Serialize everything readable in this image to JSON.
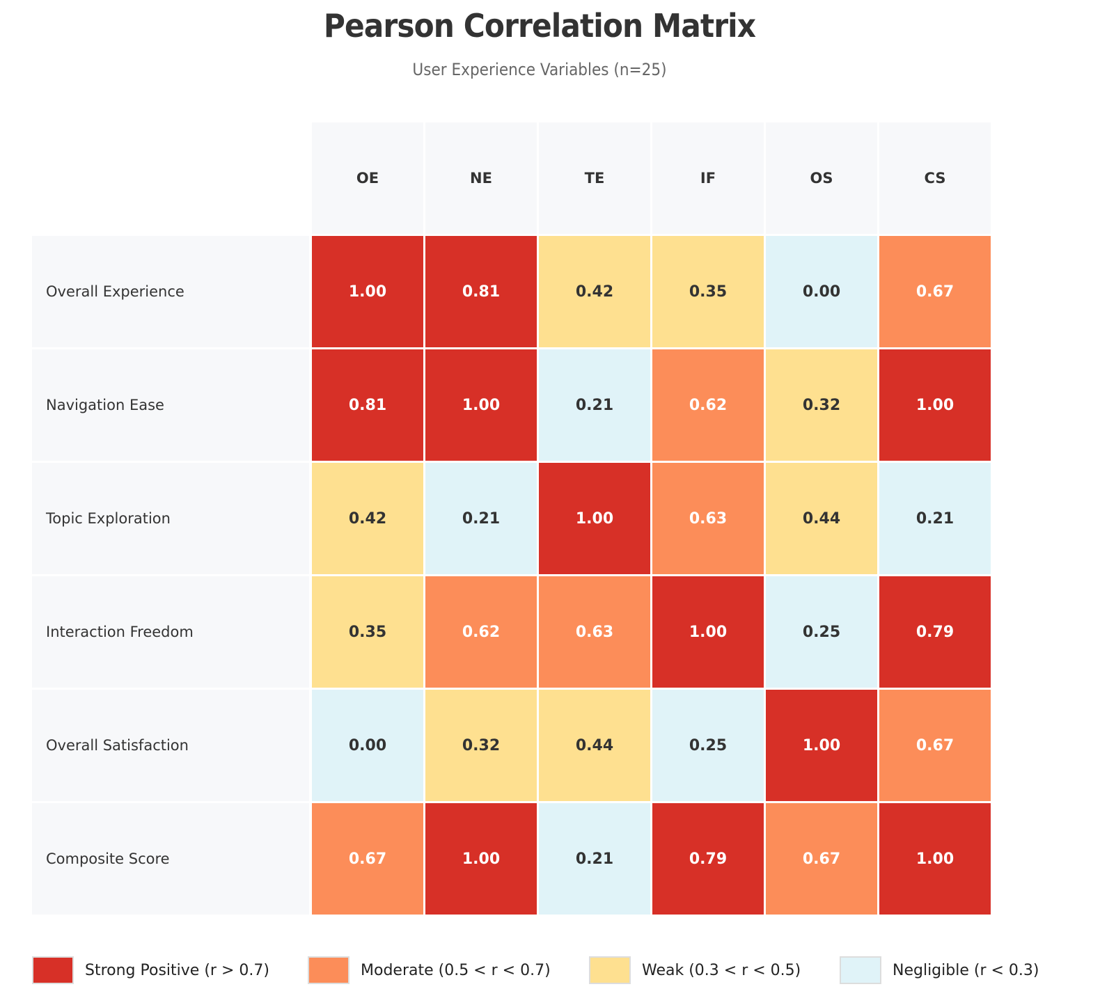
{
  "chart_data": {
    "type": "heatmap",
    "title": "Pearson Correlation Matrix",
    "subtitle": "User Experience Variables (n=25)",
    "col_labels": [
      "OE",
      "NE",
      "TE",
      "IF",
      "OS",
      "CS"
    ],
    "row_labels": [
      "Overall Experience",
      "Navigation Ease",
      "Topic Exploration",
      "Interaction Freedom",
      "Overall Satisfaction",
      "Composite Score"
    ],
    "values": [
      [
        1.0,
        0.81,
        0.42,
        0.35,
        0.0,
        0.67
      ],
      [
        0.81,
        1.0,
        0.21,
        0.62,
        0.32,
        1.0
      ],
      [
        0.42,
        0.21,
        1.0,
        0.63,
        0.44,
        0.21
      ],
      [
        0.35,
        0.62,
        0.63,
        1.0,
        0.25,
        0.79
      ],
      [
        0.0,
        0.32,
        0.44,
        0.25,
        1.0,
        0.67
      ],
      [
        0.67,
        1.0,
        0.21,
        0.79,
        0.67,
        1.0
      ]
    ],
    "categories": [
      {
        "key": "strong",
        "label": "Strong Positive (r > 0.7)",
        "min": 0.7,
        "color": "#d73027",
        "text_color": "#ffffff"
      },
      {
        "key": "moderate",
        "label": "Moderate (0.5 < r < 0.7)",
        "min": 0.5,
        "color": "#fc8d59",
        "text_color": "#ffffff"
      },
      {
        "key": "weak",
        "label": "Weak (0.3 < r < 0.5)",
        "min": 0.3,
        "color": "#fee090",
        "text_color": "#333333"
      },
      {
        "key": "negligible",
        "label": "Negligible (r < 0.3)",
        "min": -1,
        "color": "#e0f3f8",
        "text_color": "#333333"
      }
    ],
    "value_format": "2 decimals",
    "legend_position": "bottom"
  }
}
